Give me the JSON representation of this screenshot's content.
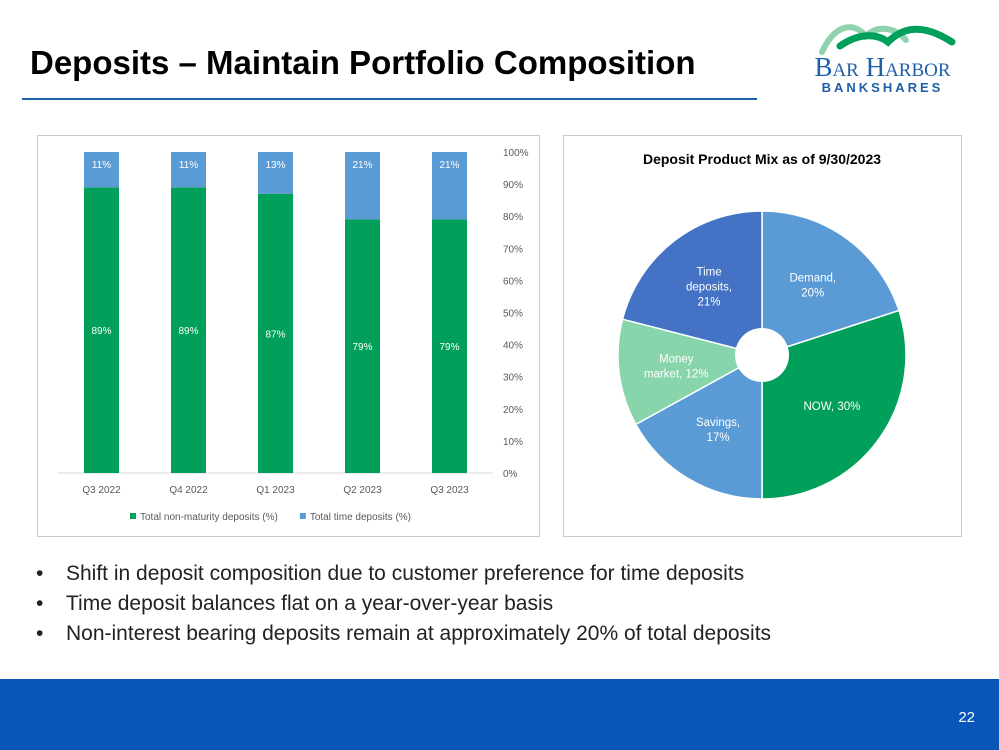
{
  "slide": {
    "title": "Deposits – Maintain Portfolio Composition",
    "page_number": "22",
    "colors": {
      "accent": "#1f5fa8",
      "footer": "#0756b8"
    }
  },
  "logo": {
    "line1": "Bar Harbor",
    "line2": "BANKSHARES"
  },
  "bullets": [
    "Shift in deposit composition due to customer preference for time deposits",
    "Time deposit balances flat on a year-over-year basis",
    "Non-interest bearing deposits remain at approximately 20% of total deposits"
  ],
  "chart_data": [
    {
      "type": "bar",
      "stacked": true,
      "title": "",
      "categories": [
        "Q3 2022",
        "Q4 2022",
        "Q1 2023",
        "Q2 2023",
        "Q3 2023"
      ],
      "series": [
        {
          "name": "Total non-maturity deposits (%)",
          "values": [
            89,
            89,
            87,
            79,
            79
          ],
          "labels": [
            "89%",
            "89%",
            "87%",
            "79%",
            "79%"
          ],
          "color": "#00a05a"
        },
        {
          "name": "Total time deposits (%)",
          "values": [
            11,
            11,
            13,
            21,
            21
          ],
          "labels": [
            "11%",
            "11%",
            "13%",
            "21%",
            "21%"
          ],
          "color": "#5b9bd5"
        }
      ],
      "ylim": [
        0,
        100
      ],
      "y_ticks": [
        "0%",
        "10%",
        "20%",
        "30%",
        "40%",
        "50%",
        "60%",
        "70%",
        "80%",
        "90%",
        "100%"
      ],
      "y_axis_side": "right",
      "legend_position": "bottom",
      "grid": false
    },
    {
      "type": "pie",
      "title": "Deposit Product Mix as of 9/30/2023",
      "donut": true,
      "slices": [
        {
          "name": "Demand",
          "value": 20,
          "label_lines": [
            "Demand,",
            "20%"
          ],
          "color": "#5b9bd5"
        },
        {
          "name": "NOW",
          "value": 30,
          "label_lines": [
            "NOW, 30%"
          ],
          "color": "#00a05a"
        },
        {
          "name": "Savings",
          "value": 17,
          "label_lines": [
            "Savings,",
            "17%"
          ],
          "color": "#5b9bd5"
        },
        {
          "name": "Money market",
          "value": 12,
          "label_lines": [
            "Money",
            "market, 12%"
          ],
          "color": "#88d4ab"
        },
        {
          "name": "Time deposits",
          "value": 21,
          "label_lines": [
            "Time",
            "deposits,",
            "21%"
          ],
          "color": "#4472c4"
        }
      ]
    }
  ]
}
